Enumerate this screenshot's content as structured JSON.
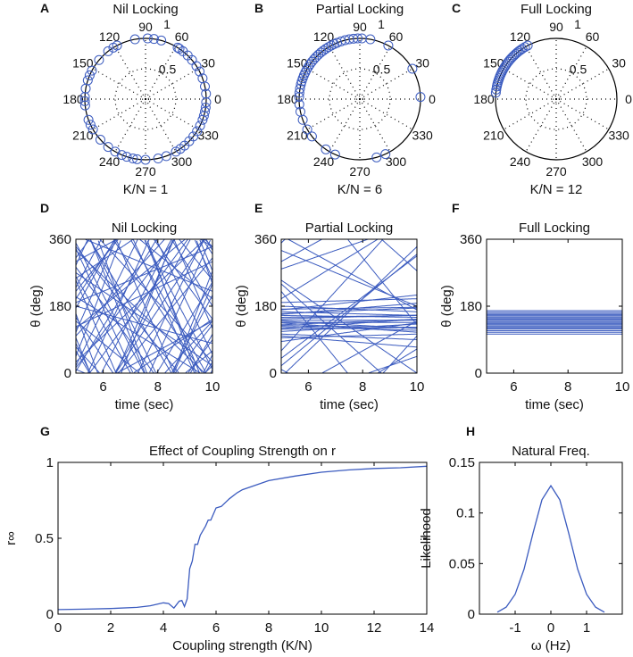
{
  "colors": {
    "line": "#3b5bbf",
    "axis": "#000000"
  },
  "chart_data": [
    {
      "panel": "A",
      "type": "polar-scatter",
      "title": "Nil Locking",
      "caption": "K/N = 1",
      "angle_ticks": [
        "0",
        "30",
        "60",
        "90",
        "120",
        "150",
        "180",
        "210",
        "240",
        "270",
        "300",
        "330"
      ],
      "radial_ticks": [
        "0.5",
        "1"
      ],
      "angles_deg": [
        5,
        12,
        20,
        27,
        33,
        40,
        46,
        52,
        56,
        58,
        75,
        82,
        88,
        100,
        118,
        122,
        128,
        140,
        152,
        157,
        162,
        170,
        178,
        182,
        186,
        200,
        205,
        210,
        222,
        232,
        240,
        247,
        252,
        258,
        262,
        270,
        282,
        290,
        300,
        305,
        310,
        316,
        322,
        328,
        334,
        340,
        344,
        348,
        352,
        357
      ],
      "r": 1
    },
    {
      "panel": "B",
      "type": "polar-scatter",
      "title": "Partial Locking",
      "caption": "K/N = 6",
      "angle_ticks": [
        "0",
        "30",
        "60",
        "90",
        "120",
        "150",
        "180",
        "210",
        "240",
        "270",
        "300",
        "330"
      ],
      "radial_ticks": [
        "0.5",
        "1"
      ],
      "angles_deg": [
        2,
        30,
        62,
        80,
        88,
        92,
        96,
        100,
        104,
        108,
        112,
        115,
        118,
        121,
        124,
        127,
        130,
        133,
        136,
        139,
        142,
        145,
        148,
        151,
        154,
        157,
        160,
        163,
        166,
        170,
        174,
        178,
        185,
        192,
        200,
        210,
        218,
        236,
        246,
        286,
        295
      ],
      "r": 1
    },
    {
      "panel": "C",
      "type": "polar-scatter",
      "title": "Full Locking",
      "caption": "K/N = 12",
      "angle_ticks": [
        "0",
        "30",
        "60",
        "90",
        "120",
        "150",
        "180",
        "210",
        "240",
        "270",
        "300",
        "330"
      ],
      "radial_ticks": [
        "0.5",
        "1"
      ],
      "angles_deg": [
        118,
        121,
        124,
        126,
        128,
        130,
        132,
        134,
        136,
        138,
        140,
        142,
        144,
        146,
        148,
        150,
        152,
        154,
        156,
        158,
        160,
        162,
        164,
        166,
        168,
        171,
        174
      ],
      "r": 1
    },
    {
      "panel": "D",
      "type": "line",
      "title": "Nil Locking",
      "xlabel": "time (sec)",
      "ylabel": "θ (deg)",
      "xlim": [
        5,
        10
      ],
      "ylim": [
        0,
        360
      ],
      "xticks": [
        "6",
        "8",
        "10"
      ],
      "yticks": [
        "0",
        "180",
        "360"
      ],
      "lines_theta0_rate": [
        [
          20,
          150
        ],
        [
          60,
          -120
        ],
        [
          100,
          80
        ],
        [
          140,
          -60
        ],
        [
          200,
          110
        ],
        [
          250,
          -170
        ],
        [
          300,
          40
        ],
        [
          340,
          -90
        ],
        [
          10,
          -30
        ],
        [
          45,
          190
        ],
        [
          80,
          -150
        ],
        [
          120,
          60
        ],
        [
          160,
          -200
        ],
        [
          190,
          30
        ],
        [
          230,
          140
        ],
        [
          270,
          -50
        ],
        [
          310,
          100
        ],
        [
          350,
          -140
        ],
        [
          30,
          70
        ],
        [
          70,
          -80
        ],
        [
          110,
          170
        ],
        [
          150,
          -110
        ],
        [
          180,
          -20
        ],
        [
          220,
          90
        ],
        [
          260,
          -130
        ],
        [
          290,
          160
        ],
        [
          330,
          -70
        ],
        [
          5,
          120
        ],
        [
          95,
          -180
        ],
        [
          175,
          130
        ],
        [
          255,
          50
        ],
        [
          335,
          -160
        ],
        [
          125,
          35
        ],
        [
          205,
          -45
        ],
        [
          285,
          -100
        ],
        [
          15,
          95
        ]
      ]
    },
    {
      "panel": "E",
      "type": "line",
      "title": "Partial Locking",
      "xlabel": "time (sec)",
      "ylabel": "θ (deg)",
      "xlim": [
        5,
        10
      ],
      "ylim": [
        0,
        360
      ],
      "xticks": [
        "6",
        "8",
        "10"
      ],
      "yticks": [
        "0",
        "180",
        "360"
      ],
      "lines_theta0_rate": [
        [
          95,
          2
        ],
        [
          105,
          -3
        ],
        [
          112,
          4
        ],
        [
          118,
          1
        ],
        [
          125,
          -2
        ],
        [
          130,
          3
        ],
        [
          136,
          0
        ],
        [
          140,
          -4
        ],
        [
          146,
          2
        ],
        [
          150,
          1
        ],
        [
          155,
          -1
        ],
        [
          160,
          3
        ],
        [
          165,
          -2
        ],
        [
          172,
          1
        ],
        [
          180,
          -3
        ],
        [
          190,
          2
        ],
        [
          100,
          -6
        ],
        [
          120,
          5
        ],
        [
          135,
          -5
        ],
        [
          158,
          6
        ],
        [
          170,
          8
        ],
        [
          85,
          10
        ],
        [
          142,
          0
        ],
        [
          128,
          -1
        ],
        [
          300,
          40
        ],
        [
          20,
          60
        ],
        [
          250,
          -50
        ],
        [
          330,
          -30
        ],
        [
          60,
          80
        ],
        [
          220,
          -90
        ],
        [
          10,
          -40
        ],
        [
          280,
          25
        ],
        [
          350,
          70
        ],
        [
          200,
          45
        ],
        [
          240,
          -65
        ],
        [
          40,
          55
        ]
      ]
    },
    {
      "panel": "F",
      "type": "line",
      "title": "Full Locking",
      "xlabel": "time (sec)",
      "ylabel": "θ (deg)",
      "xlim": [
        5,
        10
      ],
      "ylim": [
        0,
        360
      ],
      "xticks": [
        "6",
        "8",
        "10"
      ],
      "yticks": [
        "0",
        "180",
        "360"
      ],
      "lines_theta0_rate": [
        [
          105,
          0
        ],
        [
          110,
          0
        ],
        [
          114,
          0
        ],
        [
          118,
          0
        ],
        [
          121,
          0
        ],
        [
          124,
          0
        ],
        [
          127,
          0
        ],
        [
          130,
          0
        ],
        [
          133,
          0
        ],
        [
          136,
          0
        ],
        [
          139,
          0
        ],
        [
          142,
          0
        ],
        [
          145,
          0
        ],
        [
          148,
          0
        ],
        [
          151,
          0
        ],
        [
          154,
          0
        ],
        [
          157,
          0
        ],
        [
          160,
          0
        ],
        [
          164,
          0
        ],
        [
          168,
          0
        ]
      ]
    },
    {
      "panel": "G",
      "type": "line",
      "title": "Effect of Coupling Strength on r",
      "xlabel": "Coupling strength (K/N)",
      "ylabel": "r∞",
      "xlim": [
        0,
        14
      ],
      "ylim": [
        0,
        1
      ],
      "xticks": [
        "0",
        "2",
        "4",
        "6",
        "8",
        "10",
        "12",
        "14"
      ],
      "yticks": [
        "0",
        "0.5",
        "1"
      ],
      "x": [
        0,
        1,
        2,
        3,
        3.5,
        4,
        4.2,
        4.4,
        4.6,
        4.7,
        4.8,
        4.9,
        5.0,
        5.1,
        5.2,
        5.3,
        5.4,
        5.6,
        5.7,
        5.8,
        6.0,
        6.2,
        6.5,
        6.8,
        7.0,
        7.5,
        8,
        9,
        10,
        11,
        12,
        13,
        14
      ],
      "y": [
        0.03,
        0.033,
        0.037,
        0.045,
        0.055,
        0.075,
        0.07,
        0.04,
        0.085,
        0.09,
        0.05,
        0.1,
        0.3,
        0.35,
        0.46,
        0.46,
        0.52,
        0.58,
        0.62,
        0.62,
        0.7,
        0.71,
        0.76,
        0.8,
        0.82,
        0.85,
        0.88,
        0.91,
        0.935,
        0.95,
        0.96,
        0.965,
        0.975
      ]
    },
    {
      "panel": "H",
      "type": "line",
      "title": "Natural Freq.",
      "xlabel": "ω (Hz)",
      "ylabel": "Likelihood",
      "xlim": [
        -2,
        2
      ],
      "ylim": [
        0,
        0.15
      ],
      "xticks": [
        "-1",
        "0",
        "1"
      ],
      "yticks": [
        "0",
        "0.05",
        "0.1",
        "0.15"
      ],
      "x": [
        -1.5,
        -1.25,
        -1,
        -0.75,
        -0.5,
        -0.25,
        0,
        0.25,
        0.5,
        0.75,
        1,
        1.25,
        1.5
      ],
      "y": [
        0.0019,
        0.007,
        0.0197,
        0.0446,
        0.08,
        0.113,
        0.127,
        0.113,
        0.08,
        0.0446,
        0.0197,
        0.007,
        0.0019
      ]
    }
  ]
}
